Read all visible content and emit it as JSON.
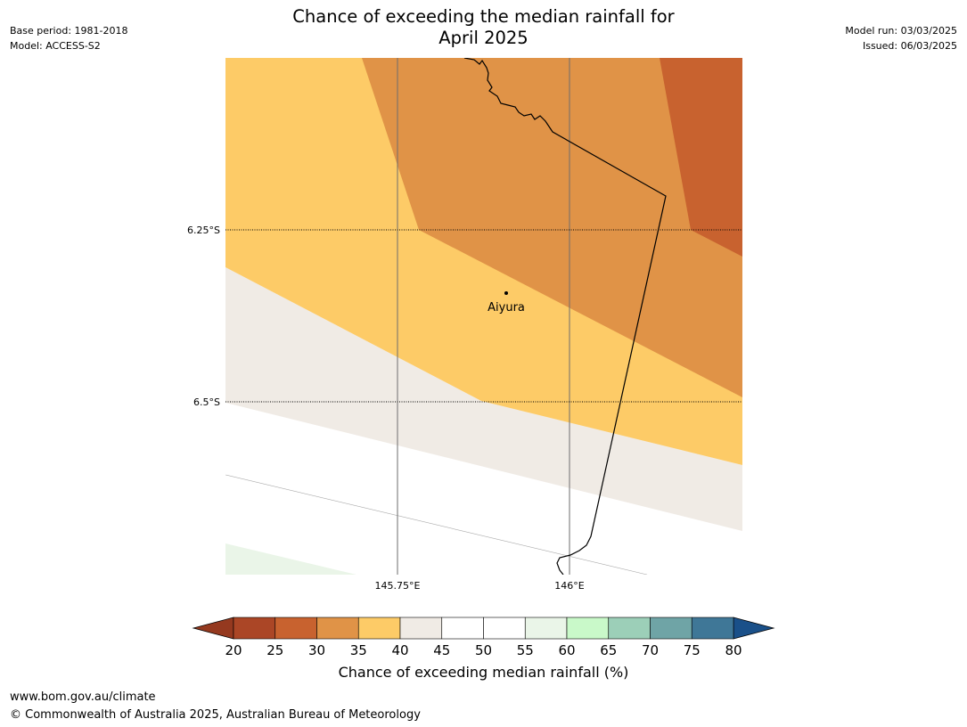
{
  "header": {
    "base_period": "Base period: 1981-2018",
    "model": "Model: ACCESS-S2",
    "model_run": "Model run: 03/03/2025",
    "issued": "Issued: 06/03/2025",
    "title_line1": "Chance of exceeding the median rainfall for",
    "title_line2": "April 2025"
  },
  "map": {
    "lat_labels": [
      "6.25°S",
      "6.5°S"
    ],
    "lon_labels": [
      "145.75°E",
      "146°E"
    ],
    "place": "Aiyura",
    "colors": {
      "c25_30": "#c8622f",
      "c30_35": "#e09347",
      "c35_40": "#fdcb67",
      "c40_45": "#f0ebe5",
      "c45_55": "#ffffff",
      "c55_60": "#eaf5e8"
    }
  },
  "colorbar": {
    "ticks": [
      "20",
      "25",
      "30",
      "35",
      "40",
      "45",
      "50",
      "55",
      "60",
      "65",
      "70",
      "75",
      "80"
    ],
    "colors": [
      "#ab4626",
      "#c8622f",
      "#e09347",
      "#fdcb67",
      "#f0ebe5",
      "#ffffff",
      "#ffffff",
      "#eaf5e8",
      "#c9f9c9",
      "#9ccfb8",
      "#6fa4a6",
      "#3f7797"
    ],
    "under_color": "#95391f",
    "over_color": "#1a5089",
    "label": "Chance of exceeding median rainfall (%)"
  },
  "footer": {
    "url": "www.bom.gov.au/climate",
    "copyright": "© Commonwealth of Australia 2025, Australian Bureau of Meteorology"
  }
}
